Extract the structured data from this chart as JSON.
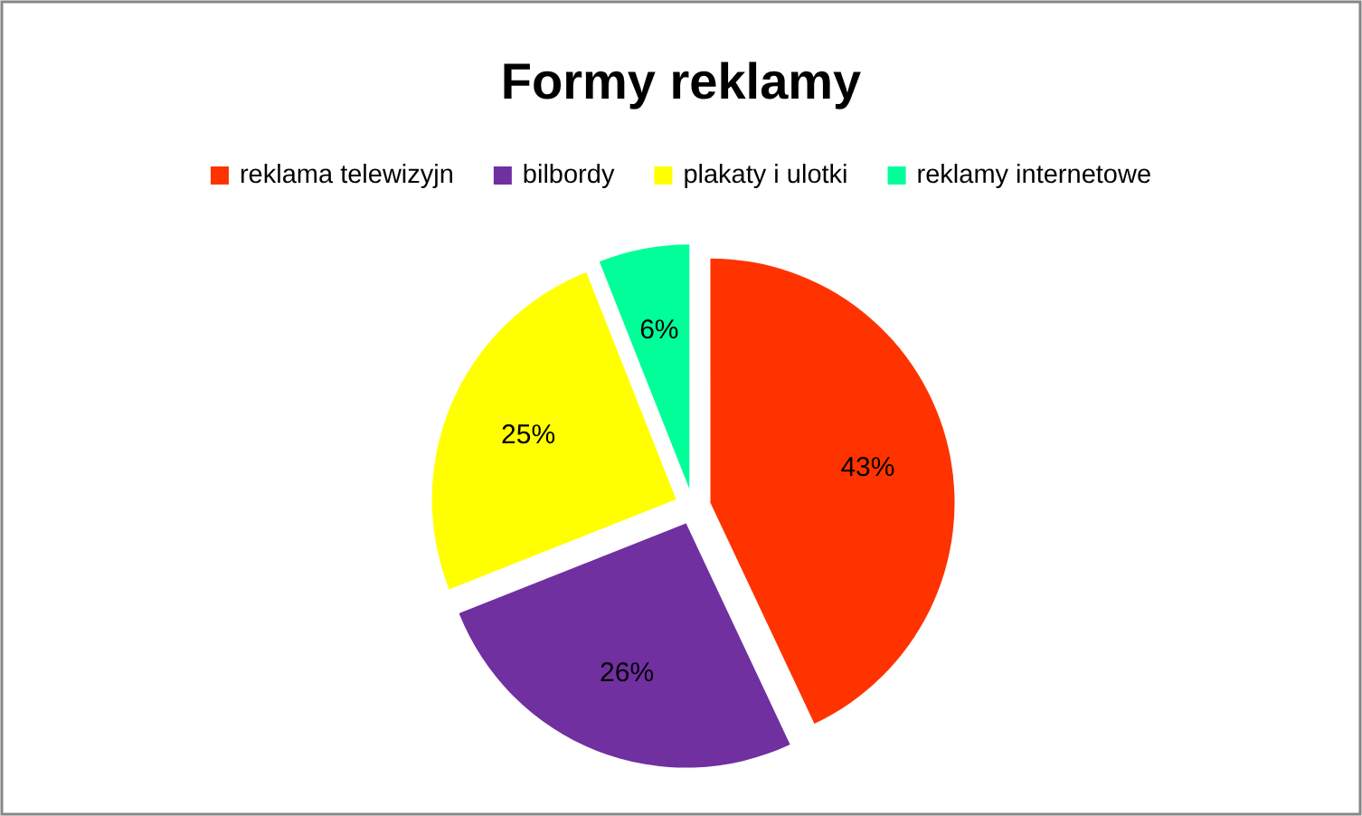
{
  "chart_data": {
    "type": "pie",
    "title": "Formy reklamy",
    "categories": [
      "reklama telewizyjn",
      "bilbordy",
      "plakaty i ulotki",
      "reklamy internetowe"
    ],
    "values": [
      43,
      26,
      25,
      6
    ],
    "colors": [
      "#ff3300",
      "#7030a0",
      "#ffff00",
      "#00ff99"
    ],
    "value_labels": [
      "43%",
      "26%",
      "25%",
      "6%"
    ],
    "legend": "top"
  }
}
